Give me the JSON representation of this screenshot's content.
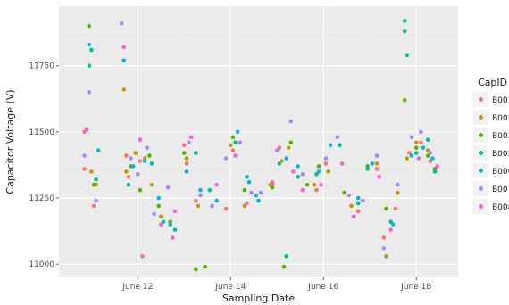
{
  "chart_data": {
    "type": "scatter",
    "xlabel": "Sampling Date",
    "ylabel": "Capacitor Voltage (V)",
    "x_ticks": [
      "June 12",
      "June 14",
      "June 16",
      "June 18"
    ],
    "y_ticks": [
      11000,
      11250,
      11500,
      11750
    ],
    "xlim": [
      10.3,
      18.9
    ],
    "ylim": [
      10950,
      11975
    ],
    "grid": true,
    "legend_title": "CapID",
    "legend_position": "right",
    "series": [
      {
        "name": "B001",
        "color": "#F8766D",
        "points": [
          [
            10.85,
            11360
          ],
          [
            10.85,
            11500
          ],
          [
            11.05,
            11220
          ],
          [
            11.75,
            11410
          ],
          [
            11.8,
            11330
          ],
          [
            12.05,
            11390
          ],
          [
            12.1,
            11030
          ],
          [
            13.0,
            11450
          ],
          [
            13.05,
            11380
          ],
          [
            13.25,
            11240
          ],
          [
            13.9,
            11210
          ],
          [
            14.05,
            11430
          ],
          [
            14.9,
            11300
          ],
          [
            15.05,
            11440
          ],
          [
            15.85,
            11280
          ],
          [
            16.05,
            11380
          ],
          [
            16.75,
            11200
          ],
          [
            17.15,
            11360
          ],
          [
            17.3,
            11100
          ],
          [
            17.55,
            11210
          ],
          [
            17.85,
            11420
          ],
          [
            18.1,
            11460
          ],
          [
            18.3,
            11390
          ]
        ]
      },
      {
        "name": "B002",
        "color": "#C49A00",
        "points": [
          [
            11.0,
            11350
          ],
          [
            11.1,
            11300
          ],
          [
            11.7,
            11660
          ],
          [
            11.75,
            11350
          ],
          [
            11.95,
            11420
          ],
          [
            12.15,
            11400
          ],
          [
            12.3,
            11300
          ],
          [
            12.5,
            11180
          ],
          [
            13.05,
            11400
          ],
          [
            13.3,
            11220
          ],
          [
            14.0,
            11450
          ],
          [
            14.3,
            11220
          ],
          [
            14.85,
            11300
          ],
          [
            15.1,
            11390
          ],
          [
            15.25,
            11440
          ],
          [
            15.8,
            11300
          ],
          [
            16.1,
            11350
          ],
          [
            16.6,
            11220
          ],
          [
            17.15,
            11380
          ],
          [
            17.35,
            11030
          ],
          [
            17.6,
            11270
          ],
          [
            17.8,
            11400
          ],
          [
            18.0,
            11460
          ],
          [
            18.25,
            11430
          ]
        ]
      },
      {
        "name": "B003",
        "color": "#53B400",
        "points": [
          [
            10.95,
            11900
          ],
          [
            11.05,
            11300
          ],
          [
            11.85,
            11370
          ],
          [
            12.05,
            11280
          ],
          [
            12.25,
            11410
          ],
          [
            12.45,
            11220
          ],
          [
            12.7,
            11160
          ],
          [
            13.0,
            11420
          ],
          [
            13.25,
            10980
          ],
          [
            13.45,
            10990
          ],
          [
            14.05,
            11480
          ],
          [
            14.3,
            11280
          ],
          [
            14.9,
            11290
          ],
          [
            15.15,
            10990
          ],
          [
            15.3,
            11460
          ],
          [
            15.65,
            11300
          ],
          [
            15.9,
            11370
          ],
          [
            16.45,
            11270
          ],
          [
            16.95,
            11370
          ],
          [
            17.35,
            11210
          ],
          [
            17.75,
            11620
          ],
          [
            18.0,
            11440
          ],
          [
            18.25,
            11410
          ],
          [
            18.4,
            11360
          ]
        ]
      },
      {
        "name": "B005",
        "color": "#00C094",
        "points": [
          [
            10.95,
            11750
          ],
          [
            11.0,
            11810
          ],
          [
            11.1,
            11320
          ],
          [
            11.8,
            11300
          ],
          [
            12.0,
            11340
          ],
          [
            12.3,
            11380
          ],
          [
            12.55,
            11160
          ],
          [
            12.8,
            11130
          ],
          [
            13.25,
            11420
          ],
          [
            13.55,
            11280
          ],
          [
            14.1,
            11460
          ],
          [
            14.35,
            11330
          ],
          [
            14.55,
            11260
          ],
          [
            15.05,
            11380
          ],
          [
            15.2,
            11030
          ],
          [
            15.45,
            11330
          ],
          [
            15.85,
            11340
          ],
          [
            16.35,
            11450
          ],
          [
            16.75,
            11230
          ],
          [
            16.95,
            11360
          ],
          [
            17.45,
            11160
          ],
          [
            17.75,
            11920
          ],
          [
            17.75,
            11880
          ],
          [
            17.8,
            11790
          ],
          [
            18.0,
            11420
          ],
          [
            18.25,
            11470
          ],
          [
            18.4,
            11350
          ]
        ]
      },
      {
        "name": "B006",
        "color": "#00B6EB",
        "points": [
          [
            10.95,
            11830
          ],
          [
            11.15,
            11430
          ],
          [
            11.7,
            11770
          ],
          [
            11.9,
            11370
          ],
          [
            12.15,
            11390
          ],
          [
            12.45,
            11250
          ],
          [
            12.7,
            11150
          ],
          [
            13.05,
            11350
          ],
          [
            13.35,
            11280
          ],
          [
            13.7,
            11240
          ],
          [
            14.15,
            11500
          ],
          [
            14.4,
            11310
          ],
          [
            14.6,
            11240
          ],
          [
            15.2,
            11400
          ],
          [
            15.45,
            11370
          ],
          [
            15.9,
            11350
          ],
          [
            16.15,
            11450
          ],
          [
            16.75,
            11250
          ],
          [
            17.05,
            11380
          ],
          [
            17.5,
            11150
          ],
          [
            17.9,
            11410
          ],
          [
            18.15,
            11440
          ],
          [
            18.35,
            11400
          ]
        ]
      },
      {
        "name": "B007",
        "color": "#A58AFF",
        "points": [
          [
            10.85,
            11410
          ],
          [
            10.95,
            11650
          ],
          [
            11.1,
            11240
          ],
          [
            11.65,
            11910
          ],
          [
            11.85,
            11400
          ],
          [
            12.0,
            11340
          ],
          [
            12.2,
            11440
          ],
          [
            12.35,
            11190
          ],
          [
            12.65,
            11290
          ],
          [
            13.1,
            11460
          ],
          [
            13.35,
            11260
          ],
          [
            13.6,
            11220
          ],
          [
            13.9,
            11400
          ],
          [
            14.2,
            11460
          ],
          [
            14.45,
            11270
          ],
          [
            14.65,
            11270
          ],
          [
            15.0,
            11430
          ],
          [
            15.3,
            11540
          ],
          [
            15.55,
            11340
          ],
          [
            16.05,
            11400
          ],
          [
            16.3,
            11480
          ],
          [
            16.55,
            11260
          ],
          [
            16.85,
            11240
          ],
          [
            17.15,
            11410
          ],
          [
            17.3,
            11060
          ],
          [
            17.6,
            11300
          ],
          [
            17.9,
            11480
          ],
          [
            18.1,
            11500
          ],
          [
            18.3,
            11420
          ]
        ]
      },
      {
        "name": "B008",
        "color": "#FB61D7",
        "points": [
          [
            10.9,
            11510
          ],
          [
            11.7,
            11820
          ],
          [
            12.05,
            11470
          ],
          [
            12.5,
            11150
          ],
          [
            12.75,
            11100
          ],
          [
            12.8,
            11200
          ],
          [
            13.15,
            11480
          ],
          [
            13.7,
            11300
          ],
          [
            14.1,
            11410
          ],
          [
            14.35,
            11230
          ],
          [
            14.9,
            11310
          ],
          [
            15.35,
            11350
          ],
          [
            15.55,
            11280
          ],
          [
            15.95,
            11300
          ],
          [
            16.4,
            11380
          ],
          [
            16.65,
            11180
          ],
          [
            17.2,
            11330
          ],
          [
            17.45,
            11130
          ],
          [
            18.05,
            11400
          ],
          [
            18.45,
            11370
          ]
        ]
      }
    ]
  }
}
